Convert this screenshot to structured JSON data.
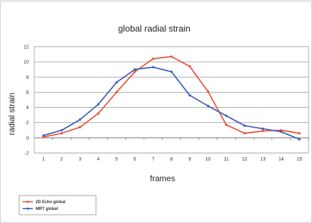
{
  "chart_data": {
    "type": "line",
    "title": "global radial strain",
    "xlabel": "frames",
    "ylabel": "radial strain",
    "categories": [
      "1",
      "2",
      "3",
      "4",
      "5",
      "6",
      "7",
      "8",
      "9",
      "10",
      "11",
      "12",
      "13",
      "14",
      "15"
    ],
    "ylim": [
      -2,
      12
    ],
    "yticks": [
      "-2",
      "0",
      "2",
      "4",
      "6",
      "8",
      "10",
      "12"
    ],
    "grid": true,
    "legend_position": "bottom-left",
    "series": [
      {
        "name": "2D Echo global",
        "color": "#e8543c",
        "values": [
          0.1,
          0.6,
          1.4,
          3.2,
          6.0,
          8.7,
          10.4,
          10.7,
          9.4,
          6.1,
          1.7,
          0.6,
          0.9,
          1.0,
          0.6
        ]
      },
      {
        "name": "MRT global",
        "color": "#3d5fb8",
        "values": [
          0.3,
          1.0,
          2.4,
          4.4,
          7.3,
          9.0,
          9.3,
          8.7,
          5.6,
          4.2,
          2.9,
          1.6,
          1.2,
          0.8,
          -0.2
        ]
      }
    ]
  }
}
